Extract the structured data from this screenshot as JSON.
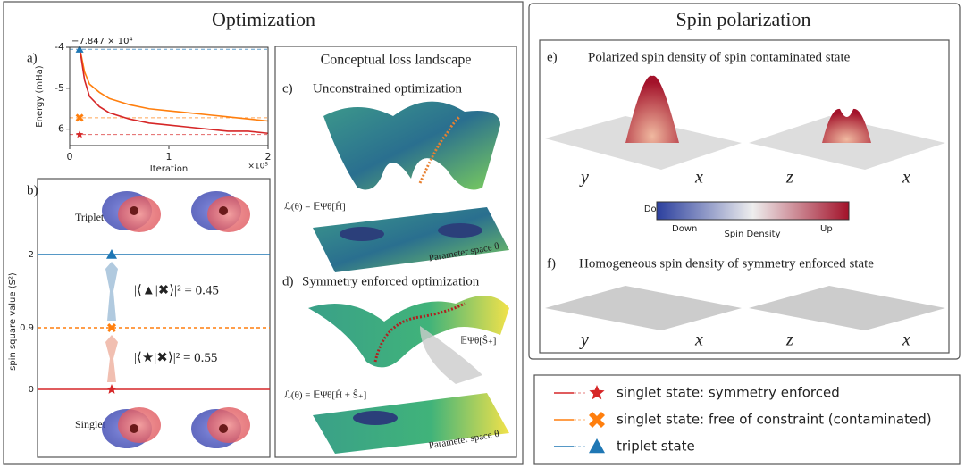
{
  "chart_data": [
    {
      "type": "line",
      "label": "a)",
      "x_label": "Iteration",
      "y_label": "Energy (mHa)",
      "offset_label": "−7.847 × 10⁴",
      "x_scale_label": "×10⁵",
      "xlim": [
        0,
        2
      ],
      "ylim": [
        -6.4,
        -4
      ],
      "xticks": [
        0,
        1,
        2
      ],
      "yticks": [
        -4,
        -5,
        -6
      ],
      "x": [
        0.1,
        0.15,
        0.2,
        0.3,
        0.4,
        0.6,
        0.8,
        1.0,
        1.2,
        1.4,
        1.6,
        1.8,
        2.0
      ],
      "series": [
        {
          "color": "#ff7f0e",
          "values": [
            -4.0,
            -4.6,
            -4.9,
            -5.1,
            -5.25,
            -5.4,
            -5.5,
            -5.55,
            -5.6,
            -5.65,
            -5.7,
            -5.75,
            -5.8
          ]
        },
        {
          "color": "#d62728",
          "values": [
            -4.0,
            -4.8,
            -5.2,
            -5.45,
            -5.6,
            -5.75,
            -5.85,
            -5.9,
            -5.95,
            -6.0,
            -6.05,
            -6.05,
            -6.1
          ]
        }
      ],
      "hlines": [
        {
          "value": -4.05,
          "color": "#1f77b4",
          "marker": "triangle"
        },
        {
          "value": -5.72,
          "color": "#ff7f0e",
          "marker": "cross"
        },
        {
          "value": -6.13,
          "color": "#d62728",
          "marker": "star"
        }
      ],
      "marker_x": 0.1
    },
    {
      "type": "levels",
      "label": "b)",
      "y_label": "spin square value ⟨S²⟩",
      "upper_label": "Triplet",
      "lower_label": "Singlet",
      "levels": [
        {
          "value": 0,
          "color": "#d62728",
          "marker": "star"
        },
        {
          "value": 0.9,
          "color": "#ff7f0e",
          "marker": "cross"
        },
        {
          "value": 2,
          "color": "#1f77b4",
          "marker": "triangle"
        }
      ],
      "overlaps": [
        0.55,
        0.45
      ],
      "overlap_labels": [
        "|⟨★|✖⟩|² = 0.55",
        "|⟨▲|✖⟩|² = 0.45"
      ]
    }
  ],
  "left": {
    "title": "Optimization",
    "heading": "Conceptual loss landscape",
    "c_label": "c)",
    "c_title": "Unconstrained optimization",
    "c_loss": "ℒ(θ) = 𝔼Ψθ[Ĥ]",
    "c_space": "Parameter space θ",
    "d_label": "d)",
    "d_title": "Symmetry enforced optimization",
    "d_loss": "ℒ(θ) = 𝔼Ψθ[Ĥ + Ŝ₊]",
    "d_side": "𝔼Ψθ[Ŝ₊]",
    "d_space": "Parameter space θ"
  },
  "right": {
    "title": "Spin polarization",
    "e_label": "e)",
    "e_title": "Polarized spin density of spin contaminated state",
    "e_axes": [
      "y",
      "x",
      "z",
      "x"
    ],
    "colorbar": {
      "low": "Down",
      "title": "Spin Density",
      "high": "Up"
    },
    "f_label": "f)",
    "f_title": "Homogeneous spin density of symmetry enforced state",
    "f_axes": [
      "y",
      "x",
      "z",
      "x"
    ]
  },
  "legend": [
    {
      "label": "singlet state: symmetry enforced",
      "color": "#d62728",
      "marker": "star"
    },
    {
      "label": "singlet state: free of constraint  (contaminated)",
      "color": "#ff7f0e",
      "marker": "cross"
    },
    {
      "label": "triplet state",
      "color": "#1f77b4",
      "marker": "triangle"
    }
  ]
}
